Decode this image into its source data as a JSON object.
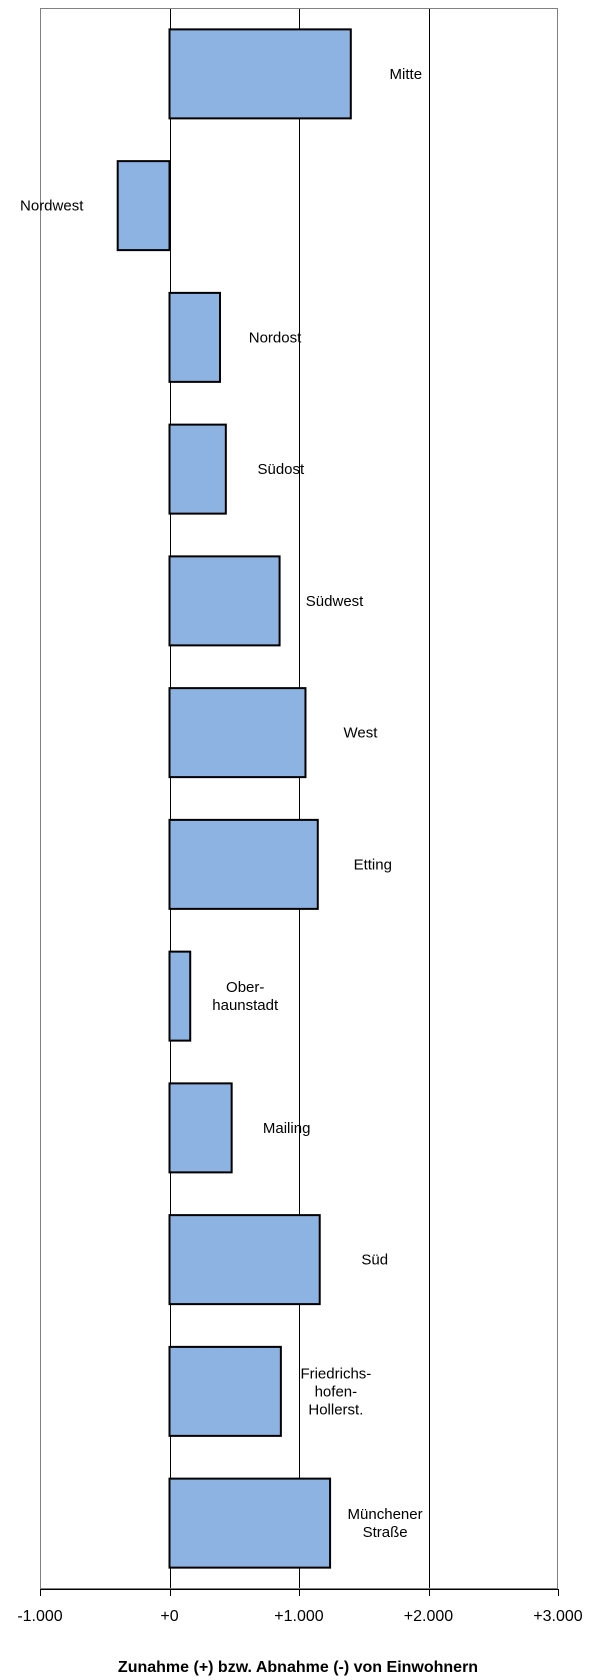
{
  "chart_data": {
    "type": "bar",
    "orientation": "horizontal",
    "categories": [
      [
        "Mitte"
      ],
      [
        "Nordwest"
      ],
      [
        "Nordost"
      ],
      [
        "Südost"
      ],
      [
        "Südwest"
      ],
      [
        "West"
      ],
      [
        "Etting"
      ],
      [
        "Ober-",
        "haunstadt"
      ],
      [
        "Mailing"
      ],
      [
        "Süd"
      ],
      [
        "Friedrichs-",
        "hofen-",
        "Hollerst."
      ],
      [
        "Münchener",
        "Straße"
      ]
    ],
    "values": [
      1400,
      -400,
      390,
      435,
      850,
      1050,
      1145,
      160,
      480,
      1160,
      860,
      1240
    ],
    "xlim": [
      -1000,
      3000
    ],
    "xticks": [
      -1000,
      0,
      1000,
      2000,
      3000
    ],
    "xtick_labels": [
      "-1.000",
      "+0",
      "+1.000",
      "+2.000",
      "+3.000"
    ],
    "xlabel": "Zunahme (+) bzw. Abnahme (-) von Einwohnern",
    "title": "",
    "grid": true,
    "colors": {
      "bar_fill": "#8DB3E2",
      "bar_stroke": "#000000",
      "grid": "#000000"
    }
  }
}
